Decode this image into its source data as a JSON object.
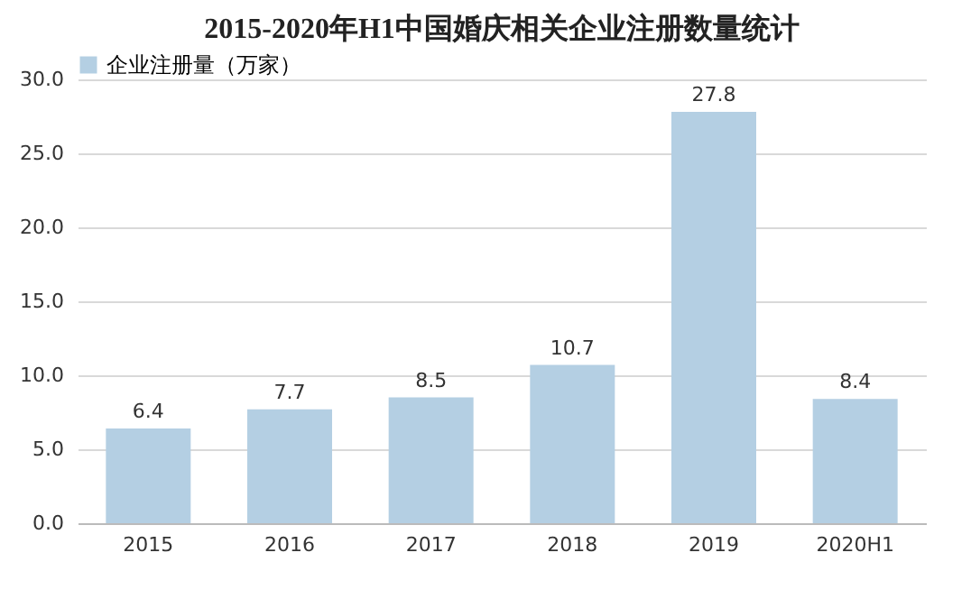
{
  "chart_data": {
    "type": "bar",
    "title": "2015-2020年H1中国婚庆相关企业注册数量统计",
    "categories": [
      "2015",
      "2016",
      "2017",
      "2018",
      "2019",
      "2020H1"
    ],
    "series": [
      {
        "name": "企业注册量（万家）",
        "color": "#b4cfe3",
        "values": [
          6.4,
          7.7,
          8.5,
          10.7,
          27.8,
          8.4
        ]
      }
    ],
    "ylim": [
      0,
      30
    ],
    "yticks": [
      {
        "value": 0,
        "label": "0.0"
      },
      {
        "value": 5,
        "label": "5.0"
      },
      {
        "value": 10,
        "label": "10.0"
      },
      {
        "value": 15,
        "label": "15.0"
      },
      {
        "value": 20,
        "label": "20.0"
      },
      {
        "value": 25,
        "label": "25.0"
      },
      {
        "value": 30,
        "label": "30.0"
      }
    ],
    "grid": "y",
    "legend": "top",
    "data_labels": true
  }
}
